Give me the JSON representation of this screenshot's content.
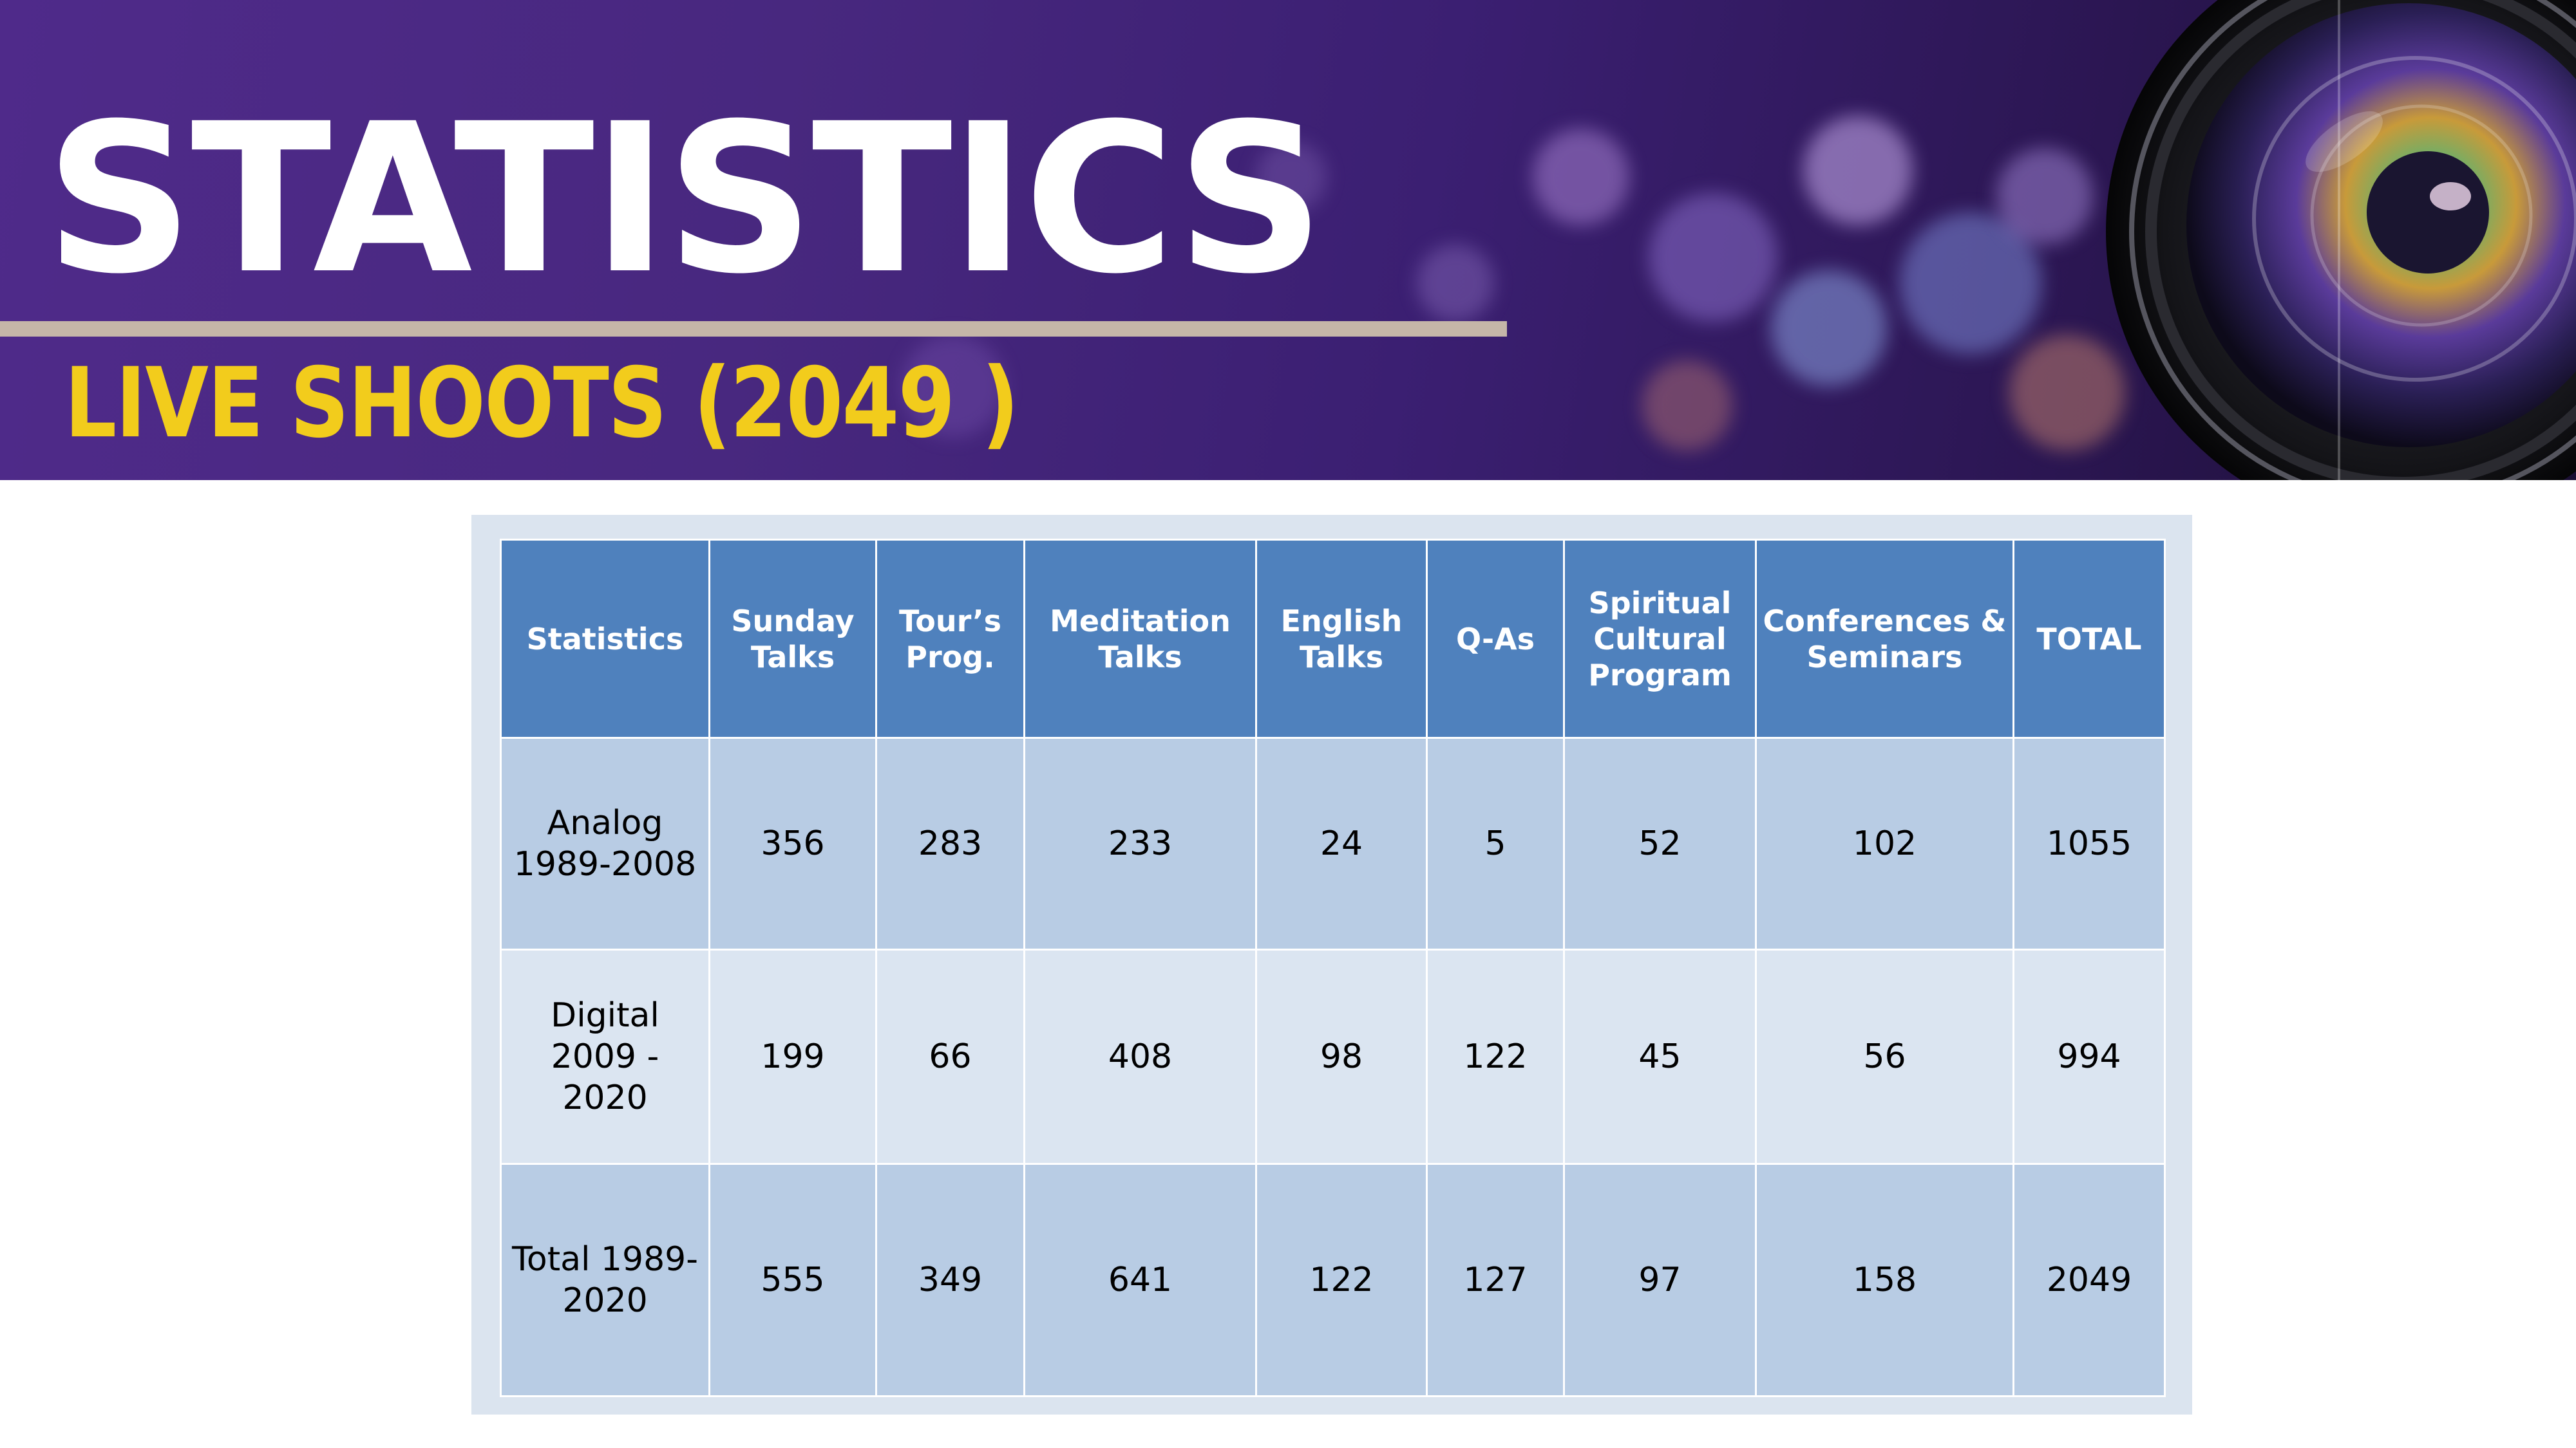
{
  "header": {
    "title": "STATISTICS",
    "subtitle": "LIVE SHOOTS (2049 )"
  },
  "colors": {
    "banner_purple": "#4f2a8a",
    "subtitle_yellow": "#f2cc1c",
    "rule": "#c5b6a8",
    "table_header": "#4f81bd",
    "row_dark": "#b8cce4",
    "row_light": "#dbe5f1",
    "frame": "#dbe4ef"
  },
  "table": {
    "headers": [
      "Statistics",
      "Sunday Talks",
      "Tour’s Prog.",
      "Meditation Talks",
      "English Talks",
      "Q-As",
      "Spiritual Cultural Program",
      "Conferences & Seminars",
      "TOTAL"
    ],
    "rows": [
      [
        "Analog 1989-2008",
        "356",
        "283",
        "233",
        "24",
        "5",
        "52",
        "102",
        "1055"
      ],
      [
        "Digital 2009 - 2020",
        "199",
        "66",
        "408",
        "98",
        "122",
        "45",
        "56",
        "994"
      ],
      [
        "Total 1989-2020",
        "555",
        "349",
        "641",
        "122",
        "127",
        "97",
        "158",
        "2049"
      ]
    ]
  },
  "decor": {
    "banner_photo": "camera-lens-icon"
  }
}
